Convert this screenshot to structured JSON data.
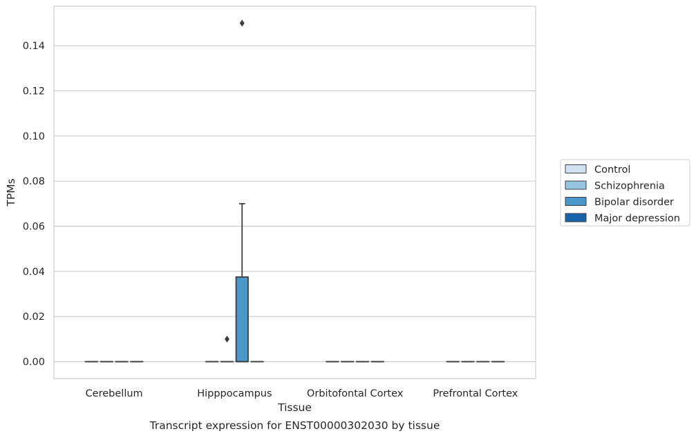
{
  "chart_data": {
    "type": "box",
    "title": "Transcript expression for ENST00000302030 by tissue",
    "xlabel": "Tissue",
    "ylabel": "TPMs",
    "ylim": [
      -0.0075,
      0.1575
    ],
    "yticks": [
      0.0,
      0.02,
      0.04,
      0.06,
      0.08,
      0.1,
      0.12,
      0.14
    ],
    "ytick_labels": [
      "0.00",
      "0.02",
      "0.04",
      "0.06",
      "0.08",
      "0.10",
      "0.12",
      "0.14"
    ],
    "categories": [
      "Cerebellum",
      "Hipppocampus",
      "Orbitofontal Cortex",
      "Prefrontal Cortex"
    ],
    "grid": "horizontal",
    "legend_position": "right",
    "series": [
      {
        "name": "Control",
        "color": "#d0e1f2",
        "boxes": [
          {
            "q1": 0,
            "median": 0,
            "q3": 0,
            "whisker_low": 0,
            "whisker_high": 0,
            "outliers": []
          },
          {
            "q1": 0,
            "median": 0,
            "q3": 0,
            "whisker_low": 0,
            "whisker_high": 0,
            "outliers": []
          },
          {
            "q1": 0,
            "median": 0,
            "q3": 0,
            "whisker_low": 0,
            "whisker_high": 0,
            "outliers": []
          },
          {
            "q1": 0,
            "median": 0,
            "q3": 0,
            "whisker_low": 0,
            "whisker_high": 0,
            "outliers": []
          }
        ]
      },
      {
        "name": "Schizophrenia",
        "color": "#94c4df",
        "boxes": [
          {
            "q1": 0,
            "median": 0,
            "q3": 0,
            "whisker_low": 0,
            "whisker_high": 0,
            "outliers": []
          },
          {
            "q1": 0,
            "median": 0,
            "q3": 0,
            "whisker_low": 0,
            "whisker_high": 0,
            "outliers": [
              0.01
            ]
          },
          {
            "q1": 0,
            "median": 0,
            "q3": 0,
            "whisker_low": 0,
            "whisker_high": 0,
            "outliers": []
          },
          {
            "q1": 0,
            "median": 0,
            "q3": 0,
            "whisker_low": 0,
            "whisker_high": 0,
            "outliers": []
          }
        ]
      },
      {
        "name": "Bipolar disorder",
        "color": "#4a98c9",
        "boxes": [
          {
            "q1": 0,
            "median": 0,
            "q3": 0,
            "whisker_low": 0,
            "whisker_high": 0,
            "outliers": []
          },
          {
            "q1": 0,
            "median": 0,
            "q3": 0.0375,
            "whisker_low": 0,
            "whisker_high": 0.07,
            "outliers": [
              0.15
            ]
          },
          {
            "q1": 0,
            "median": 0,
            "q3": 0,
            "whisker_low": 0,
            "whisker_high": 0,
            "outliers": []
          },
          {
            "q1": 0,
            "median": 0,
            "q3": 0,
            "whisker_low": 0,
            "whisker_high": 0,
            "outliers": []
          }
        ]
      },
      {
        "name": "Major depression",
        "color": "#1764ab",
        "boxes": [
          {
            "q1": 0,
            "median": 0,
            "q3": 0,
            "whisker_low": 0,
            "whisker_high": 0,
            "outliers": []
          },
          {
            "q1": 0,
            "median": 0,
            "q3": 0,
            "whisker_low": 0,
            "whisker_high": 0,
            "outliers": []
          },
          {
            "q1": 0,
            "median": 0,
            "q3": 0,
            "whisker_low": 0,
            "whisker_high": 0,
            "outliers": []
          },
          {
            "q1": 0,
            "median": 0,
            "q3": 0,
            "whisker_low": 0,
            "whisker_high": 0,
            "outliers": []
          }
        ]
      }
    ]
  }
}
